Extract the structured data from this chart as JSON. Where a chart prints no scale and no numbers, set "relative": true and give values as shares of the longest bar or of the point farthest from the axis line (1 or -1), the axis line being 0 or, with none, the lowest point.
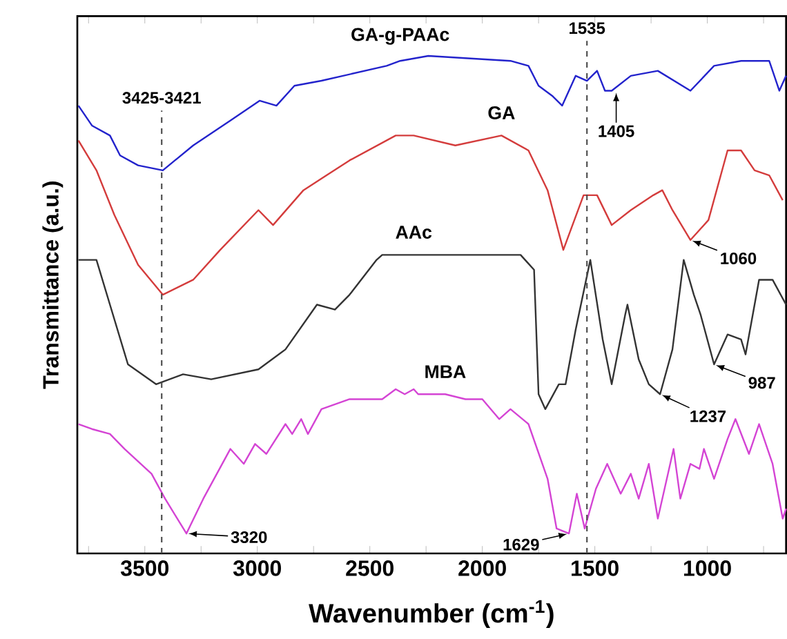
{
  "chart_data": {
    "type": "line",
    "relative": true,
    "xlabel": "Wavenumber (cm$^{-1}$)",
    "ylabel": "Transmittance (a.u.)",
    "xlim": [
      3800,
      650
    ],
    "xticks": [
      {
        "value": 3750,
        "label": null
      },
      3500,
      {
        "value": 3250,
        "label": null
      },
      3000,
      {
        "value": 2750,
        "label": null
      },
      2500,
      {
        "value": 2250,
        "label": null
      },
      2000,
      {
        "value": 1750,
        "label": null
      },
      1500,
      {
        "value": 1250,
        "label": null
      },
      1000,
      {
        "value": 750,
        "label": null
      }
    ],
    "legend": false,
    "grid": false,
    "marker": "none",
    "line_style": "solid",
    "series": [
      {
        "name": "GA-g-PAAc",
        "color": "#2323cc",
        "x": [
          3795,
          3735,
          3655,
          3610,
          3530,
          3420,
          3285,
          3120,
          2990,
          2915,
          2835,
          2715,
          2425,
          2365,
          2240,
          1875,
          1795,
          1750,
          1690,
          1645,
          1585,
          1535,
          1490,
          1455,
          1425,
          1340,
          1220,
          1075,
          970,
          850,
          725,
          680,
          650
        ],
        "values": [
          0.9,
          0.86,
          0.84,
          0.8,
          0.78,
          0.77,
          0.82,
          0.87,
          0.91,
          0.9,
          0.94,
          0.95,
          0.98,
          0.99,
          1.0,
          0.99,
          0.98,
          0.94,
          0.92,
          0.9,
          0.96,
          0.95,
          0.97,
          0.93,
          0.93,
          0.96,
          0.97,
          0.93,
          0.98,
          0.99,
          0.99,
          0.93,
          0.96
        ]
      },
      {
        "name": "GA",
        "color": "#d43c3c",
        "x": [
          3795,
          3715,
          3635,
          3530,
          3420,
          3285,
          3165,
          2995,
          2930,
          2795,
          2590,
          2385,
          2305,
          2120,
          1915,
          1795,
          1710,
          1640,
          1550,
          1490,
          1425,
          1340,
          1240,
          1200,
          1155,
          1075,
          995,
          910,
          850,
          790,
          725,
          665
        ],
        "values": [
          0.83,
          0.77,
          0.68,
          0.58,
          0.52,
          0.55,
          0.61,
          0.69,
          0.66,
          0.73,
          0.79,
          0.84,
          0.84,
          0.82,
          0.84,
          0.81,
          0.73,
          0.61,
          0.72,
          0.72,
          0.66,
          0.69,
          0.72,
          0.73,
          0.69,
          0.63,
          0.67,
          0.81,
          0.81,
          0.77,
          0.76,
          0.71
        ]
      },
      {
        "name": "AAc",
        "color": "#333333",
        "x": [
          3795,
          3715,
          3655,
          3575,
          3450,
          3330,
          3205,
          2995,
          2875,
          2735,
          2655,
          2590,
          2470,
          2445,
          2305,
          1830,
          1770,
          1750,
          1720,
          1660,
          1630,
          1585,
          1520,
          1465,
          1425,
          1365,
          1355,
          1305,
          1260,
          1210,
          1155,
          1105,
          1060,
          1030,
          970,
          910,
          850,
          830,
          770,
          710,
          650
        ],
        "values": [
          0.59,
          0.59,
          0.5,
          0.38,
          0.34,
          0.36,
          0.35,
          0.37,
          0.41,
          0.5,
          0.49,
          0.52,
          0.59,
          0.6,
          0.6,
          0.6,
          0.57,
          0.32,
          0.29,
          0.34,
          0.34,
          0.45,
          0.59,
          0.43,
          0.34,
          0.48,
          0.5,
          0.39,
          0.34,
          0.32,
          0.41,
          0.59,
          0.52,
          0.48,
          0.38,
          0.44,
          0.43,
          0.4,
          0.55,
          0.55,
          0.5
        ]
      },
      {
        "name": "MBA",
        "color": "#d444d4",
        "x": [
          3795,
          3735,
          3655,
          3590,
          3470,
          3410,
          3315,
          3240,
          3120,
          3060,
          3010,
          2960,
          2875,
          2845,
          2805,
          2775,
          2715,
          2590,
          2445,
          2385,
          2345,
          2305,
          2285,
          2165,
          2075,
          2000,
          1925,
          1875,
          1795,
          1710,
          1670,
          1615,
          1580,
          1545,
          1495,
          1445,
          1385,
          1340,
          1305,
          1260,
          1220,
          1150,
          1120,
          1075,
          1035,
          1015,
          970,
          910,
          875,
          815,
          770,
          710,
          665,
          650
        ],
        "values": [
          0.26,
          0.25,
          0.24,
          0.21,
          0.16,
          0.11,
          0.04,
          0.11,
          0.21,
          0.18,
          0.22,
          0.2,
          0.26,
          0.24,
          0.27,
          0.24,
          0.29,
          0.31,
          0.31,
          0.33,
          0.32,
          0.33,
          0.32,
          0.32,
          0.31,
          0.31,
          0.27,
          0.29,
          0.26,
          0.15,
          0.05,
          0.04,
          0.12,
          0.05,
          0.13,
          0.18,
          0.12,
          0.16,
          0.11,
          0.18,
          0.07,
          0.21,
          0.11,
          0.18,
          0.17,
          0.21,
          0.15,
          0.23,
          0.27,
          0.2,
          0.26,
          0.18,
          0.07,
          0.09
        ]
      }
    ],
    "ref_lines": [
      {
        "axis": "x",
        "value": 3425,
        "label": "3425-3421",
        "line_style": "dashed"
      },
      {
        "axis": "x",
        "value": 1535,
        "label": "1535",
        "line_style": "dashed"
      }
    ],
    "annotations": [
      {
        "text": "1405",
        "x": 1405,
        "y": 0.93
      },
      {
        "text": "1060",
        "x": 1075,
        "y": 0.63
      },
      {
        "text": "987",
        "x": 970,
        "y": 0.38
      },
      {
        "text": "1237",
        "x": 1210,
        "y": 0.32
      },
      {
        "text": "3320",
        "x": 3315,
        "y": 0.04
      },
      {
        "text": "1629",
        "x": 1615,
        "y": 0.04
      }
    ]
  }
}
